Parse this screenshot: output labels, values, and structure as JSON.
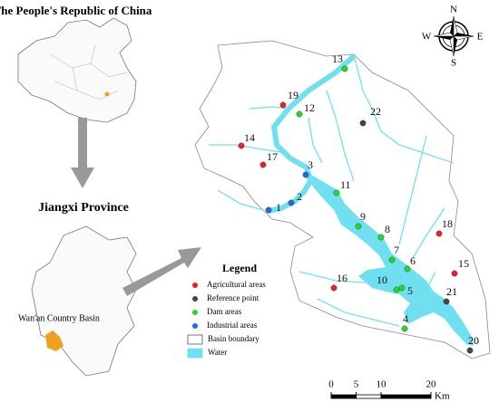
{
  "titles": {
    "country": "The People's Republic of China",
    "province": "Jiangxi Province",
    "basin": "Wan'an Country Basin"
  },
  "compass": {
    "n": "N",
    "s": "S",
    "e": "E",
    "w": "W"
  },
  "legend": {
    "title": "Legend",
    "items": [
      {
        "label": "Agricultural areas",
        "color": "#e8202a",
        "symbol": "point"
      },
      {
        "label": "Reference point",
        "color": "#444444",
        "symbol": "point"
      },
      {
        "label": "Dam areas",
        "color": "#22d92a",
        "symbol": "point"
      },
      {
        "label": "Industrial areas",
        "color": "#1d6de0",
        "symbol": "point"
      },
      {
        "label": "Basin boundary",
        "color": "#ffffff",
        "symbol": "box"
      },
      {
        "label": "Water",
        "color": "#70dff0",
        "symbol": "box"
      }
    ]
  },
  "scale": {
    "ticks": [
      0,
      5,
      10,
      20
    ],
    "unit": "Km"
  },
  "sites": [
    {
      "label": "1",
      "kind": 3
    },
    {
      "label": "2",
      "kind": 3
    },
    {
      "label": "3",
      "kind": 3
    },
    {
      "label": "4",
      "kind": 2
    },
    {
      "label": "5",
      "kind": 2
    },
    {
      "label": "6",
      "kind": 2
    },
    {
      "label": "7",
      "kind": 2
    },
    {
      "label": "8",
      "kind": 2
    },
    {
      "label": "9",
      "kind": 2
    },
    {
      "label": "10",
      "kind": 2
    },
    {
      "label": "11",
      "kind": 2
    },
    {
      "label": "12",
      "kind": 2
    },
    {
      "label": "13",
      "kind": 2
    },
    {
      "label": "14",
      "kind": 0
    },
    {
      "label": "15",
      "kind": 0
    },
    {
      "label": "16",
      "kind": 0
    },
    {
      "label": "17",
      "kind": 0
    },
    {
      "label": "18",
      "kind": 0
    },
    {
      "label": "19",
      "kind": 0
    },
    {
      "label": "20",
      "kind": 1
    },
    {
      "label": "21",
      "kind": 1
    },
    {
      "label": "22",
      "kind": 1
    }
  ]
}
